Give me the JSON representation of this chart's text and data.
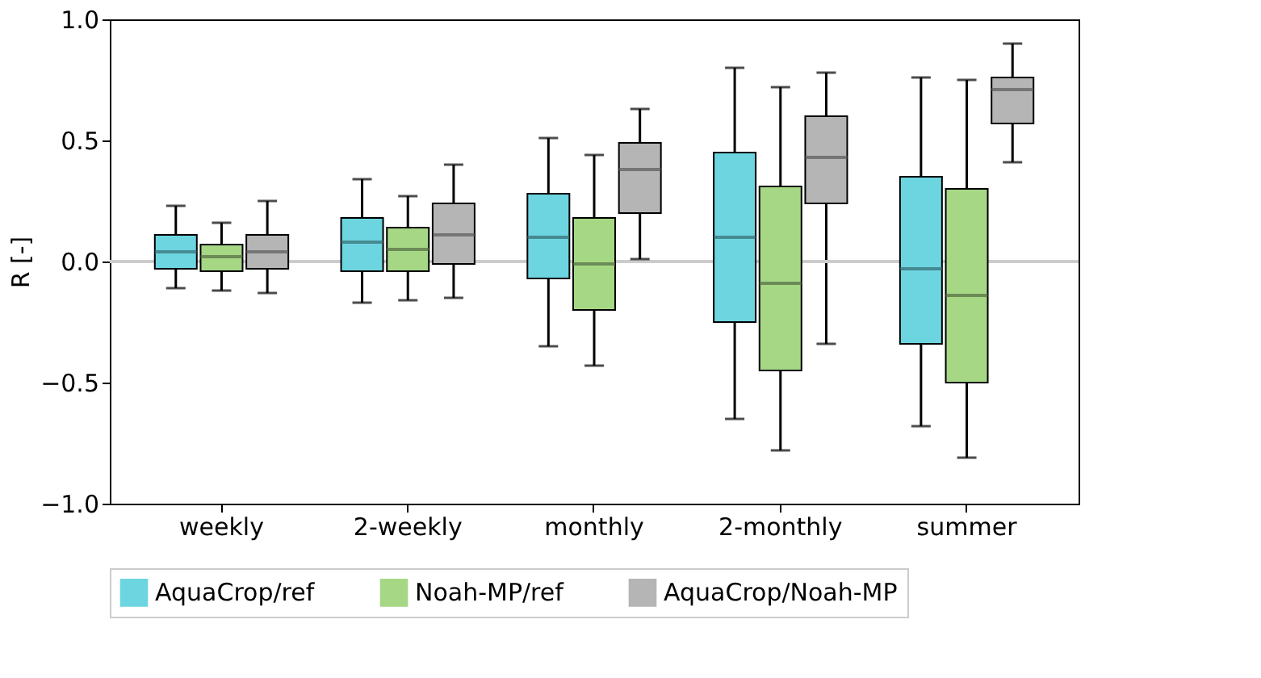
{
  "chart_data": {
    "type": "box",
    "ylabel": "R [-]",
    "categories": [
      "weekly",
      "2-weekly",
      "monthly",
      "2-monthly",
      "summer"
    ],
    "ylim": [
      -1.0,
      1.0
    ],
    "yticks": [
      {
        "value": -1,
        "label": "−1.0"
      },
      {
        "value": -0.5,
        "label": "−0.5"
      },
      {
        "value": 0,
        "label": "0.0"
      },
      {
        "value": 0.5,
        "label": "0.5"
      },
      {
        "value": 1,
        "label": "1.0"
      }
    ],
    "grid": false,
    "legend": "bottom",
    "ref_lines": [
      {
        "axis": "y",
        "value": 0,
        "color": "#cccccc"
      }
    ],
    "series": [
      {
        "name": "AquaCrop/ref",
        "color": "#6dd5e0",
        "boxes": [
          {
            "low": -0.11,
            "q1": -0.03,
            "median": 0.04,
            "q3": 0.11,
            "high": 0.23
          },
          {
            "low": -0.17,
            "q1": -0.04,
            "median": 0.08,
            "q3": 0.18,
            "high": 0.34
          },
          {
            "low": -0.35,
            "q1": -0.07,
            "median": 0.1,
            "q3": 0.28,
            "high": 0.51
          },
          {
            "low": -0.65,
            "q1": -0.25,
            "median": 0.1,
            "q3": 0.45,
            "high": 0.8
          },
          {
            "low": -0.68,
            "q1": -0.34,
            "median": -0.03,
            "q3": 0.35,
            "high": 0.76
          }
        ]
      },
      {
        "name": "Noah-MP/ref",
        "color": "#a6d785",
        "boxes": [
          {
            "low": -0.12,
            "q1": -0.04,
            "median": 0.02,
            "q3": 0.07,
            "high": 0.16
          },
          {
            "low": -0.16,
            "q1": -0.04,
            "median": 0.05,
            "q3": 0.14,
            "high": 0.27
          },
          {
            "low": -0.43,
            "q1": -0.2,
            "median": -0.01,
            "q3": 0.18,
            "high": 0.44
          },
          {
            "low": -0.78,
            "q1": -0.45,
            "median": -0.09,
            "q3": 0.31,
            "high": 0.72
          },
          {
            "low": -0.81,
            "q1": -0.5,
            "median": -0.14,
            "q3": 0.3,
            "high": 0.75
          }
        ]
      },
      {
        "name": "AquaCrop/Noah-MP",
        "color": "#b5b5b5",
        "boxes": [
          {
            "low": -0.13,
            "q1": -0.03,
            "median": 0.04,
            "q3": 0.11,
            "high": 0.25
          },
          {
            "low": -0.15,
            "q1": -0.01,
            "median": 0.11,
            "q3": 0.24,
            "high": 0.4
          },
          {
            "low": 0.01,
            "q1": 0.2,
            "median": 0.38,
            "q3": 0.49,
            "high": 0.63
          },
          {
            "low": -0.34,
            "q1": 0.24,
            "median": 0.43,
            "q3": 0.6,
            "high": 0.78
          },
          {
            "low": 0.41,
            "q1": 0.57,
            "median": 0.71,
            "q3": 0.76,
            "high": 0.9
          }
        ]
      }
    ]
  }
}
